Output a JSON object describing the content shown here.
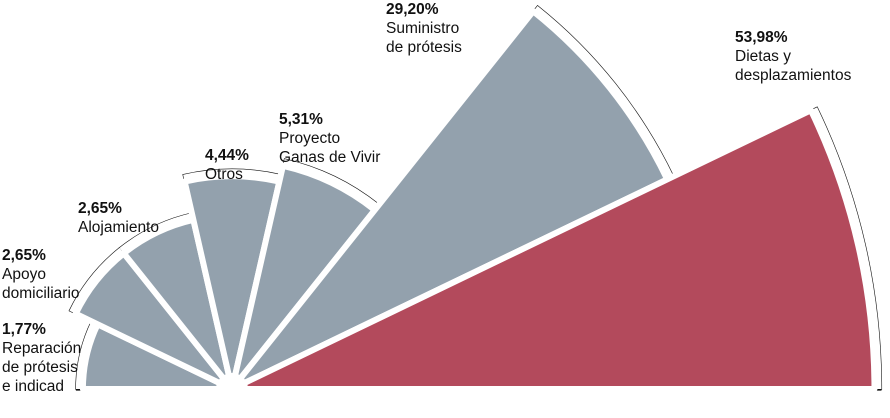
{
  "chart_data": {
    "type": "polar-area",
    "legend": "none",
    "grid": false,
    "colors": {
      "highlight": "#b34a5c",
      "default": "#93a1ad"
    },
    "slices": [
      {
        "label": "Reparación de prótesis e indicad",
        "value": 1.77,
        "value_label": "1,77%",
        "lines": [
          "Reparación",
          "de prótesis",
          "e indicad"
        ]
      },
      {
        "label": "Apoyo domiciliario",
        "value": 2.65,
        "value_label": "2,65%",
        "lines": [
          "Apoyo",
          "domiciliario"
        ]
      },
      {
        "label": "Alojamiento",
        "value": 2.65,
        "value_label": "2,65%",
        "lines": [
          "Alojamiento"
        ]
      },
      {
        "label": "Otros",
        "value": 4.44,
        "value_label": "4,44%",
        "lines": [
          "Otros"
        ]
      },
      {
        "label": "Proyecto Ganas de Vivir",
        "value": 5.31,
        "value_label": "5,31%",
        "lines": [
          "Proyecto",
          "Ganas de Vivir"
        ]
      },
      {
        "label": "Suministro de prótesis",
        "value": 29.2,
        "value_label": "29,20%",
        "lines": [
          "Suministro",
          "de prótesis"
        ]
      },
      {
        "label": "Dietas y desplazamientos",
        "value": 53.98,
        "value_label": "53,98%",
        "lines": [
          "Dietas y",
          "desplazamientos"
        ],
        "highlight": true
      }
    ]
  }
}
